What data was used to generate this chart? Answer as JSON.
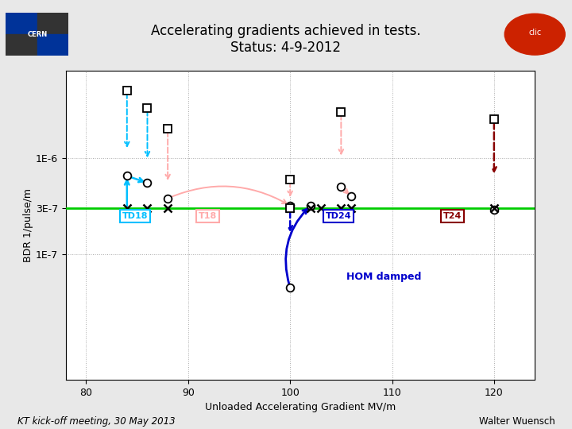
{
  "title": "Accelerating gradients achieved in tests.\nStatus: 4-9-2012",
  "xlabel": "Unloaded Accelerating Gradient MV/m",
  "ylabel": "BDR 1/pulse/m",
  "xlim": [
    78,
    124
  ],
  "ymin": 5e-09,
  "ymax": 8e-06,
  "green_line_y": 3e-07,
  "ytick_vals": [
    1e-07,
    3e-07,
    1e-06
  ],
  "ytick_labels": [
    "1E-7",
    "3E-7",
    "1E-6"
  ],
  "xticks": [
    80,
    90,
    100,
    110,
    120
  ],
  "bg_color": "#e8e8e8",
  "plot_bg": "#ffffff",
  "td18_color": "#00bfff",
  "t18_color": "#ffaaaa",
  "td24_color": "#0000cc",
  "t24_color": "#880000",
  "footer_left": "KT kick-off meeting, 30 May 2013",
  "footer_right": "Walter Wuensch"
}
